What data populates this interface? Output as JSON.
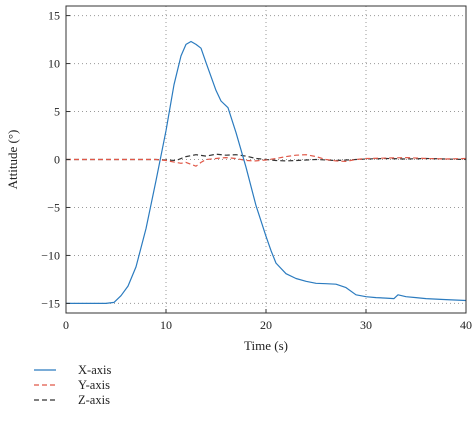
{
  "chart_data": {
    "type": "line",
    "title": "",
    "xlabel": "Time (s)",
    "ylabel": "Attitude (°)",
    "xlim": [
      0,
      40
    ],
    "ylim": [
      -16,
      16
    ],
    "xticks": [
      0,
      10,
      20,
      30,
      40
    ],
    "yticks": [
      -15,
      -10,
      -5,
      0,
      5,
      10,
      15
    ],
    "grid": true,
    "legend": "bottom-left-below",
    "series": [
      {
        "name": "X-axis",
        "color": "#2b7bbf",
        "dash": "solid",
        "x": [
          0,
          2,
          4,
          4.8,
          5.5,
          6.2,
          7,
          8,
          9,
          10,
          10.8,
          11.5,
          12,
          12.5,
          13,
          13.5,
          14,
          15,
          15.5,
          16.2,
          17,
          18,
          19,
          20,
          20.5,
          21,
          22,
          23,
          24,
          25,
          26,
          27,
          28,
          29,
          30,
          31,
          32,
          32.8,
          33.2,
          34,
          35,
          36,
          38,
          40
        ],
        "values": [
          -15,
          -15,
          -15,
          -14.9,
          -14.2,
          -13.2,
          -11.2,
          -7.2,
          -2.2,
          3.0,
          7.8,
          10.8,
          12.0,
          12.3,
          12.0,
          11.6,
          10.1,
          7.2,
          6.1,
          5.4,
          2.8,
          -0.8,
          -4.8,
          -8.0,
          -9.5,
          -10.8,
          -11.9,
          -12.4,
          -12.7,
          -12.9,
          -12.95,
          -13.0,
          -13.35,
          -14.1,
          -14.3,
          -14.4,
          -14.45,
          -14.5,
          -14.1,
          -14.3,
          -14.4,
          -14.5,
          -14.6,
          -14.7
        ]
      },
      {
        "name": "Y-axis",
        "color": "#e05848",
        "dash": "5,3",
        "x": [
          0,
          4,
          8,
          9,
          10,
          11,
          11.5,
          12,
          12.5,
          13,
          13.5,
          14,
          15,
          16,
          17,
          18,
          19,
          20,
          21,
          22,
          23,
          24,
          25,
          26,
          27,
          28,
          29,
          30,
          32,
          34,
          36,
          38,
          40
        ],
        "values": [
          0,
          0,
          0,
          0,
          -0.1,
          -0.3,
          -0.4,
          -0.3,
          -0.5,
          -0.7,
          -0.3,
          0.0,
          0.1,
          0.2,
          0.1,
          -0.1,
          -0.15,
          -0.05,
          0.1,
          0.3,
          0.45,
          0.5,
          0.3,
          0.0,
          -0.15,
          -0.2,
          0.0,
          0.1,
          0.15,
          0.2,
          0.1,
          0.05,
          0.1
        ]
      },
      {
        "name": "Z-axis",
        "color": "#333333",
        "dash": "5,3",
        "x": [
          0,
          4,
          8,
          9,
          10,
          11,
          12,
          13,
          14,
          15,
          16,
          17,
          18,
          19,
          20,
          21,
          22,
          23,
          24,
          25,
          26,
          27,
          28,
          29,
          30,
          32,
          34,
          36,
          38,
          40
        ],
        "values": [
          0,
          0,
          0,
          0,
          -0.05,
          -0.1,
          0.3,
          0.5,
          0.35,
          0.55,
          0.45,
          0.5,
          0.35,
          0.1,
          0.0,
          -0.1,
          -0.15,
          -0.1,
          -0.05,
          0.0,
          -0.05,
          -0.1,
          -0.05,
          0.0,
          0.05,
          0.1,
          0.05,
          0.1,
          0.05,
          0.0
        ]
      }
    ]
  }
}
